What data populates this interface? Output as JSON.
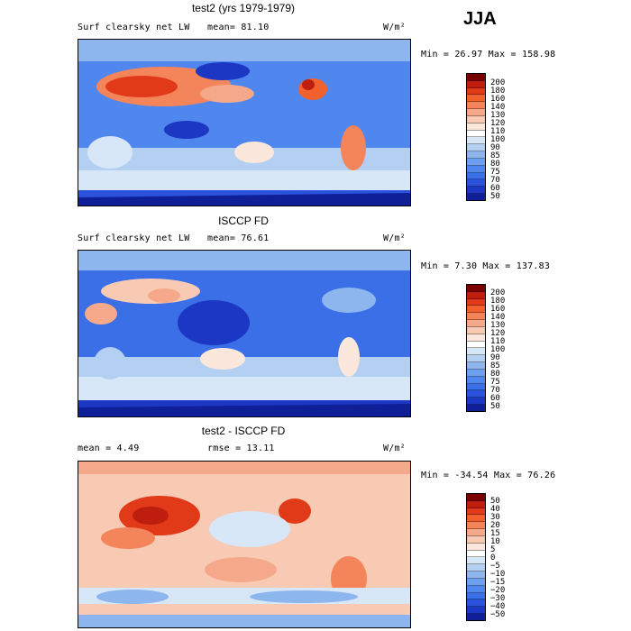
{
  "season": "JJA",
  "colors": {
    "abs_scale": [
      "#7a0000",
      "#bf1d0e",
      "#e03a18",
      "#f0612e",
      "#f4845a",
      "#f6a98a",
      "#f8cab4",
      "#fbe7db",
      "#ffffff",
      "#d7e7f8",
      "#b3cff2",
      "#8db6ee",
      "#6c9ff0",
      "#4f87ef",
      "#3b6fe8",
      "#2a52dc",
      "#1c37c4",
      "#0e1f98"
    ],
    "diff_scale": [
      "#7a0000",
      "#bf1d0e",
      "#e03a18",
      "#f0612e",
      "#f4845a",
      "#f6a98a",
      "#f8cab4",
      "#fbe7db",
      "#ffffff",
      "#d7e7f8",
      "#b3cff2",
      "#8db6ee",
      "#6c9ff0",
      "#4f87ef",
      "#3b6fe8",
      "#2a52dc",
      "#1c37c4",
      "#0e1f98"
    ]
  },
  "panels": [
    {
      "title": "test2 (yrs 1979-1979)",
      "variable": "Surf clearsky net LW",
      "mean_text": "mean=  81.10",
      "rmse_text": "",
      "units": "W/m²",
      "minmax_text": "Min =  26.97 Max = 158.98",
      "colorbar_labels": [
        "200",
        "180",
        "160",
        "140",
        "130",
        "120",
        "110",
        "100",
        "90",
        "85",
        "80",
        "75",
        "70",
        "60",
        "50"
      ],
      "kind": "abs"
    },
    {
      "title": "ISCCP FD",
      "variable": "Surf clearsky net LW",
      "mean_text": "mean=  76.61",
      "rmse_text": "",
      "units": "W/m²",
      "minmax_text": "Min =   7.30 Max = 137.83",
      "colorbar_labels": [
        "200",
        "180",
        "160",
        "140",
        "130",
        "120",
        "110",
        "100",
        "90",
        "85",
        "80",
        "75",
        "70",
        "60",
        "50"
      ],
      "kind": "abs"
    },
    {
      "title": "test2 - ISCCP FD",
      "variable": "",
      "mean_text": "mean =   4.49",
      "rmse_text": "rmse =  13.11",
      "units": "W/m²",
      "minmax_text": "Min = -34.54 Max =  76.26",
      "colorbar_labels": [
        "50",
        "40",
        "30",
        "20",
        "15",
        "10",
        "5",
        "0",
        "−5",
        "−10",
        "−15",
        "−20",
        "−30",
        "−40",
        "−50"
      ],
      "kind": "diff"
    }
  ],
  "chart_data": [
    {
      "type": "heatmap",
      "title": "test2 (yrs 1979-1979)",
      "subtitle": "Surf clearsky net LW",
      "units": "W/m²",
      "mean": 81.1,
      "min": 26.97,
      "max": 158.98,
      "contour_levels": [
        50,
        60,
        70,
        75,
        80,
        85,
        90,
        100,
        110,
        120,
        130,
        140,
        160,
        180,
        200
      ]
    },
    {
      "type": "heatmap",
      "title": "ISCCP FD",
      "subtitle": "Surf clearsky net LW",
      "units": "W/m²",
      "mean": 76.61,
      "min": 7.3,
      "max": 137.83,
      "contour_levels": [
        50,
        60,
        70,
        75,
        80,
        85,
        90,
        100,
        110,
        120,
        130,
        140,
        160,
        180,
        200
      ]
    },
    {
      "type": "heatmap",
      "title": "test2 - ISCCP FD",
      "units": "W/m²",
      "mean": 4.49,
      "rmse": 13.11,
      "min": -34.54,
      "max": 76.26,
      "contour_levels": [
        -50,
        -40,
        -30,
        -20,
        -15,
        -10,
        -5,
        0,
        5,
        10,
        15,
        20,
        30,
        40,
        50
      ]
    }
  ]
}
